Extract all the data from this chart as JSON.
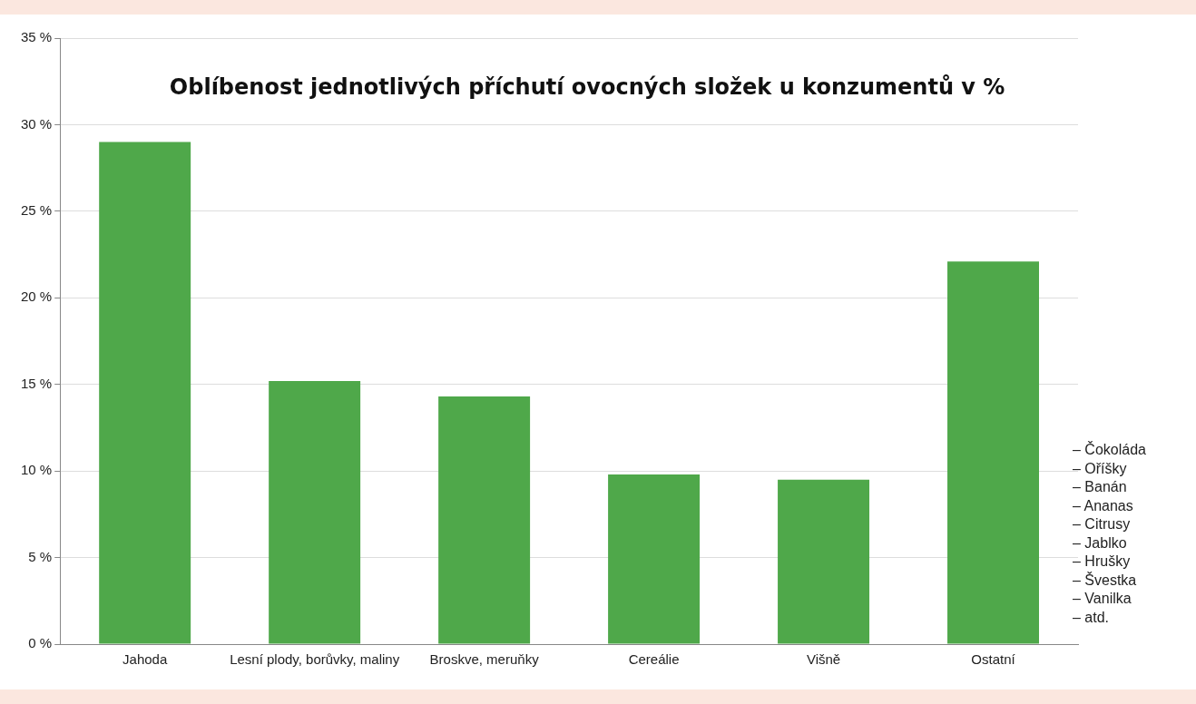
{
  "chart_data": {
    "type": "bar",
    "title": "Oblíbenost jednotlivých příchutí ovocných složek u konzumentů v %",
    "categories": [
      "Jahoda",
      "Lesní plody, borůvky, maliny",
      "Broskve, meruňky",
      "Cereálie",
      "Višně",
      "Ostatní"
    ],
    "values": [
      29,
      15.2,
      14.3,
      9.8,
      9.5,
      22.1
    ],
    "color": "#4fa84a",
    "ylim": [
      0,
      35
    ],
    "yticks": [
      {
        "value": 0,
        "label": "0 %"
      },
      {
        "value": 5,
        "label": "5 %"
      },
      {
        "value": 10,
        "label": "10 %"
      },
      {
        "value": 15,
        "label": "15 %"
      },
      {
        "value": 20,
        "label": "20 %"
      },
      {
        "value": 25,
        "label": "25 %"
      },
      {
        "value": 30,
        "label": "30 %"
      },
      {
        "value": 35,
        "label": "35 %"
      }
    ],
    "grid": "y",
    "legend": false,
    "annotations": [
      "– Čokoláda",
      "– Oříšky",
      "– Banán",
      "– Ananas",
      "– Citrusy",
      "– Jablko",
      "– Hrušky",
      "– Švestka",
      "– Vanilka",
      "– atd."
    ]
  }
}
